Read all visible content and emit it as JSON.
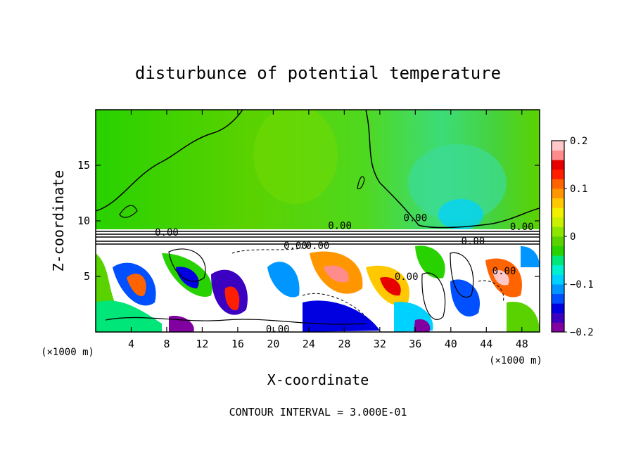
{
  "chart_data": {
    "type": "heatmap",
    "title": "disturbunce of potential temperature",
    "xlabel": "X-coordinate",
    "ylabel": "Z-coordinate",
    "x_unit": "(×1000 m)",
    "z_unit": "(×1000 m)",
    "xlim": [
      0,
      50
    ],
    "zlim": [
      0,
      20
    ],
    "x_ticks": [
      "4",
      "8",
      "12",
      "16",
      "20",
      "24",
      "28",
      "32",
      "36",
      "40",
      "44",
      "48"
    ],
    "x_tick_values": [
      4,
      8,
      12,
      16,
      20,
      24,
      28,
      32,
      36,
      40,
      44,
      48
    ],
    "z_ticks": [
      "5",
      "10",
      "15"
    ],
    "z_tick_values": [
      5,
      10,
      15
    ],
    "colorbar": {
      "min": -0.2,
      "max": 0.2,
      "tick_labels": [
        "0.2",
        "0.1",
        "0",
        "−0.1",
        "−0.2"
      ],
      "tick_values": [
        0.2,
        0.1,
        0,
        -0.1,
        -0.2
      ],
      "colors": [
        "#8000a0",
        "#3c00c0",
        "#0000e0",
        "#0050ff",
        "#0096ff",
        "#00d2ff",
        "#00f0d2",
        "#00e678",
        "#28d200",
        "#5ad200",
        "#8ce600",
        "#c8f000",
        "#f0f000",
        "#ffc800",
        "#ff9600",
        "#ff6400",
        "#ff1e00",
        "#e60000",
        "#ff8c8c",
        "#ffc8c8"
      ]
    },
    "contour_labels": [
      {
        "text": "0.00",
        "x": 27.5,
        "z": 9.6
      },
      {
        "text": "0.00",
        "x": 22.5,
        "z": 7.8
      },
      {
        "text": "0.00",
        "x": 8.0,
        "z": 9.0
      },
      {
        "text": "0.00",
        "x": 42.5,
        "z": 8.2
      },
      {
        "text": "0.00",
        "x": 35.0,
        "z": 5.0
      },
      {
        "text": "0.00",
        "x": 46.0,
        "z": 5.5
      },
      {
        "text": "0.00",
        "x": 20.5,
        "z": 0.3
      },
      {
        "text": "0.00",
        "x": 48.0,
        "z": 9.5
      },
      {
        "text": "0.00",
        "x": 36.0,
        "z": 10.3
      },
      {
        "text": "0.00",
        "x": 25.0,
        "z": 7.8
      }
    ],
    "contour_interval_text": "CONTOUR INTERVAL = 3.000E-01"
  }
}
